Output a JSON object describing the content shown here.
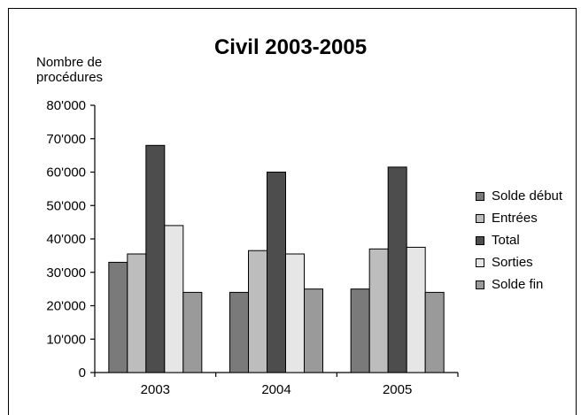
{
  "chart_data": {
    "type": "bar",
    "title": "Civil 2003-2005",
    "ylabel": "Nombre de procédures",
    "ylabel_lines": [
      "Nombre de",
      "procédures"
    ],
    "xlabel": "",
    "categories": [
      "2003",
      "2004",
      "2005"
    ],
    "ylim": [
      0,
      80000
    ],
    "yticks": [
      0,
      10000,
      20000,
      30000,
      40000,
      50000,
      60000,
      70000,
      80000
    ],
    "ytick_labels": [
      "0",
      "10'000",
      "20'000",
      "30'000",
      "40'000",
      "50'000",
      "60'000",
      "70'000",
      "80'000"
    ],
    "grid": false,
    "legend_position": "right",
    "series": [
      {
        "name": "Solde début",
        "color": "#7a7a7a",
        "values": [
          33000,
          24000,
          25000
        ]
      },
      {
        "name": "Entrées",
        "color": "#bdbdbd",
        "values": [
          35500,
          36500,
          37000
        ]
      },
      {
        "name": "Total",
        "color": "#4d4d4d",
        "values": [
          68000,
          60000,
          61500
        ]
      },
      {
        "name": "Sorties",
        "color": "#e6e6e6",
        "values": [
          44000,
          35500,
          37500
        ]
      },
      {
        "name": "Solde fin",
        "color": "#9a9a9a",
        "values": [
          24000,
          25000,
          24000
        ]
      }
    ]
  }
}
